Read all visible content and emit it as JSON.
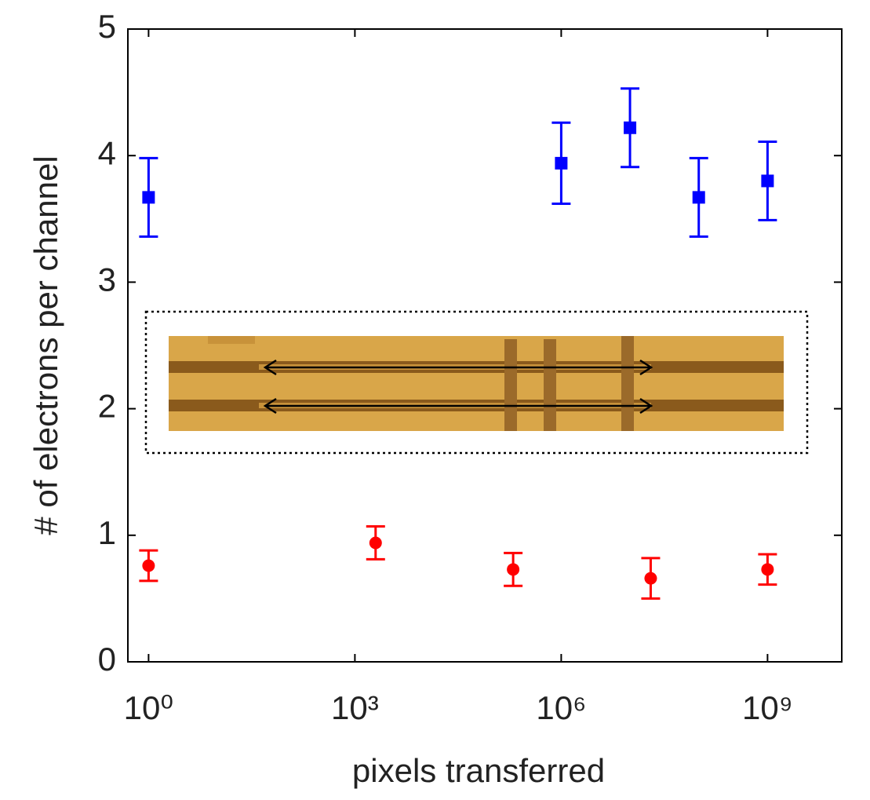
{
  "chart_data": {
    "type": "scatter",
    "xlabel": "pixels transferred",
    "ylabel": "# of electrons per channel",
    "xscale": "log",
    "xlim": [
      0.5,
      12000000000
    ],
    "ylim": [
      0,
      5
    ],
    "xticks": [
      {
        "value": 1,
        "label": "10⁰"
      },
      {
        "value": 1000,
        "label": "10³"
      },
      {
        "value": 1000000,
        "label": "10⁶"
      },
      {
        "value": 1000000000,
        "label": "10⁹"
      }
    ],
    "yticks": [
      0,
      1,
      2,
      3,
      4,
      5
    ],
    "series": [
      {
        "color": "#0000ff",
        "marker": "square",
        "x": [
          1,
          1000000,
          10000000,
          100000000,
          1000000000
        ],
        "values": [
          3.67,
          3.94,
          4.22,
          3.67,
          3.8
        ],
        "errors": [
          0.31,
          0.32,
          0.31,
          0.31,
          0.31
        ]
      },
      {
        "color": "#ff0000",
        "marker": "circle",
        "x": [
          1,
          2000,
          200000,
          20000000,
          1000000000
        ],
        "values": [
          0.76,
          0.94,
          0.73,
          0.66,
          0.73
        ],
        "errors": [
          0.12,
          0.13,
          0.13,
          0.16,
          0.12
        ]
      }
    ]
  }
}
